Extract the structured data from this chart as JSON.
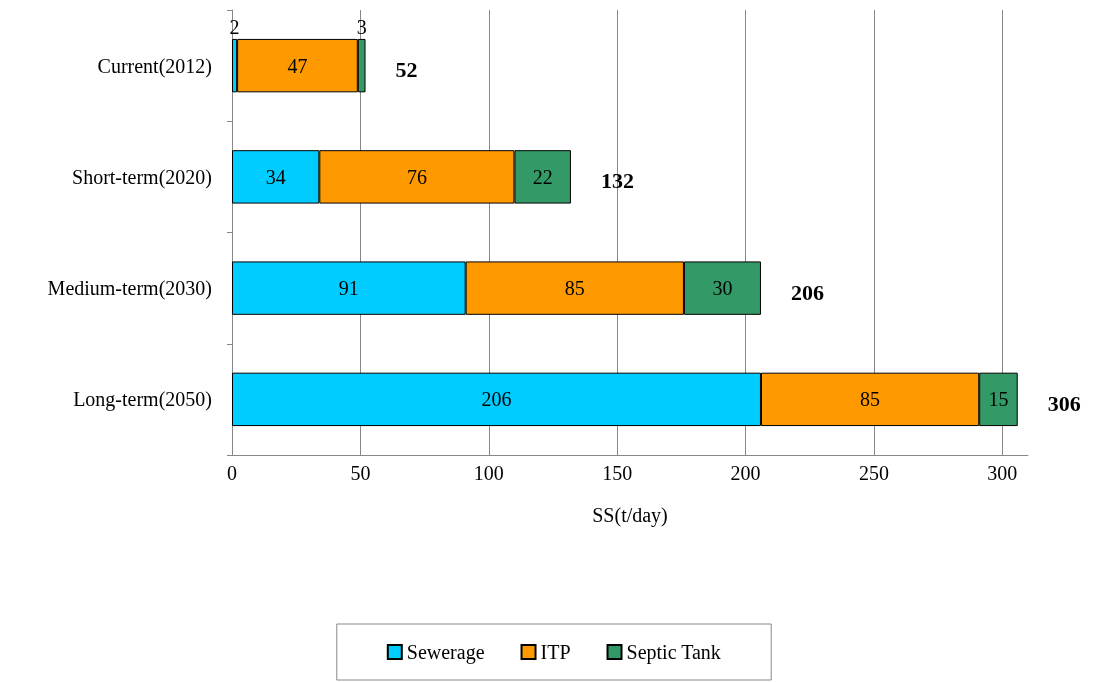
{
  "chart_data": {
    "type": "bar",
    "orientation": "horizontal",
    "stacked": true,
    "data_labels": true,
    "xlabel": "SS(t/day)",
    "categories": [
      "Current(2012)",
      "Short-term(2020)",
      "Medium-term(2030)",
      "Long-term(2050)"
    ],
    "series": [
      {
        "name": "Sewerage",
        "color": "#00ccff",
        "values": [
          2,
          34,
          91,
          206
        ]
      },
      {
        "name": "ITP",
        "color": "#ff9900",
        "values": [
          47,
          76,
          85,
          85
        ]
      },
      {
        "name": "Septic Tank",
        "color": "#339966",
        "values": [
          3,
          22,
          30,
          15
        ]
      }
    ],
    "totals": [
      "52",
      "132",
      "206",
      "306"
    ],
    "xlim": [
      0,
      310
    ],
    "xticks": [
      0,
      50,
      100,
      150,
      200,
      250,
      300
    ],
    "grid": "x",
    "legend": "bottom"
  }
}
